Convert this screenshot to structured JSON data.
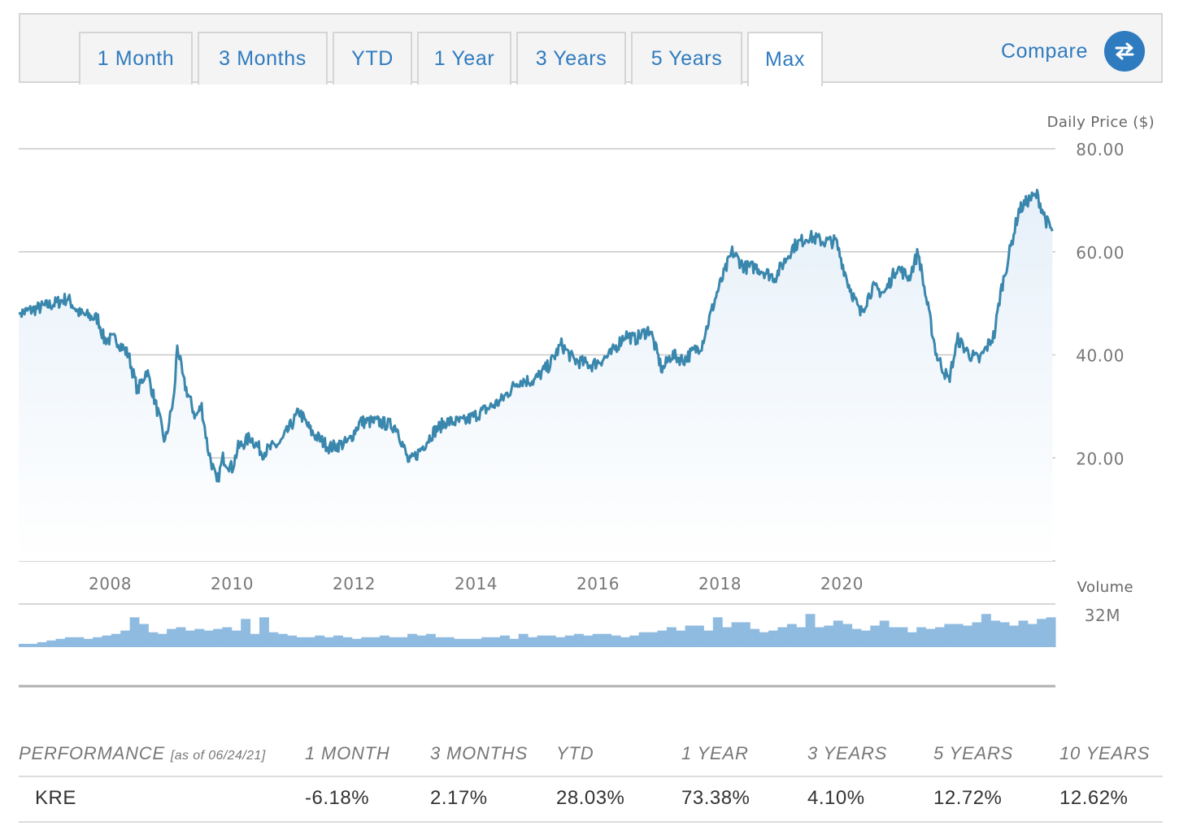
{
  "tabs": [
    {
      "label": "1 Month",
      "active": false
    },
    {
      "label": "3 Months",
      "active": false
    },
    {
      "label": "YTD",
      "active": false
    },
    {
      "label": "1 Year",
      "active": false
    },
    {
      "label": "3 Years",
      "active": false
    },
    {
      "label": "5 Years",
      "active": false
    },
    {
      "label": "Max",
      "active": true
    }
  ],
  "compare": {
    "label": "Compare",
    "icon": "swap-arrows-icon"
  },
  "colors": {
    "accent": "#2f7bbf",
    "line": "#3a87ad",
    "area": "#e6f0f9",
    "volume": "#8fbbe0",
    "grid": "#c8c8c8"
  },
  "chart_data": {
    "type": "line",
    "ylabel": "Daily Price ($)",
    "ylim": [
      0,
      80
    ],
    "y_ticks": [
      "80.00",
      "60.00",
      "40.00",
      "20.00"
    ],
    "x_ticks": [
      "2008",
      "2010",
      "2012",
      "2014",
      "2016",
      "2018",
      "2020"
    ],
    "grid": true,
    "series": [
      {
        "values_xy": [
          [
            2006.5,
            48
          ],
          [
            2006.8,
            49
          ],
          [
            2007.1,
            50
          ],
          [
            2007.3,
            51
          ],
          [
            2007.5,
            48
          ],
          [
            2007.8,
            47
          ],
          [
            2007.9,
            43
          ],
          [
            2008.1,
            43
          ],
          [
            2008.3,
            40
          ],
          [
            2008.45,
            33
          ],
          [
            2008.6,
            37
          ],
          [
            2008.8,
            28
          ],
          [
            2008.9,
            23
          ],
          [
            2009.05,
            32
          ],
          [
            2009.1,
            42
          ],
          [
            2009.2,
            35
          ],
          [
            2009.4,
            28
          ],
          [
            2009.5,
            30
          ],
          [
            2009.6,
            22
          ],
          [
            2009.75,
            15
          ],
          [
            2009.85,
            20
          ],
          [
            2010.0,
            18
          ],
          [
            2010.1,
            22
          ],
          [
            2010.3,
            24
          ],
          [
            2010.5,
            21
          ],
          [
            2010.8,
            23
          ],
          [
            2011.1,
            29
          ],
          [
            2011.3,
            25
          ],
          [
            2011.6,
            22
          ],
          [
            2011.9,
            23
          ],
          [
            2012.1,
            27
          ],
          [
            2012.4,
            27
          ],
          [
            2012.7,
            26
          ],
          [
            2012.9,
            19
          ],
          [
            2013.05,
            21
          ],
          [
            2013.3,
            25
          ],
          [
            2013.5,
            27
          ],
          [
            2013.8,
            27
          ],
          [
            2014.1,
            29
          ],
          [
            2014.4,
            31
          ],
          [
            2014.7,
            35
          ],
          [
            2014.95,
            35
          ],
          [
            2015.2,
            38
          ],
          [
            2015.4,
            42
          ],
          [
            2015.6,
            39
          ],
          [
            2015.9,
            38
          ],
          [
            2016.2,
            40
          ],
          [
            2016.45,
            44
          ],
          [
            2016.6,
            43
          ],
          [
            2016.85,
            45
          ],
          [
            2017.05,
            37
          ],
          [
            2017.2,
            40
          ],
          [
            2017.4,
            39
          ],
          [
            2017.7,
            42
          ],
          [
            2017.95,
            52
          ],
          [
            2018.2,
            60
          ],
          [
            2018.4,
            57
          ],
          [
            2018.6,
            57
          ],
          [
            2018.9,
            55
          ],
          [
            2019.2,
            61
          ],
          [
            2019.45,
            63
          ],
          [
            2019.7,
            62
          ],
          [
            2019.9,
            62
          ],
          [
            2020.1,
            54
          ],
          [
            2020.3,
            48
          ],
          [
            2020.5,
            53
          ],
          [
            2020.7,
            52
          ],
          [
            2020.9,
            57
          ],
          [
            2021.1,
            55
          ],
          [
            2021.25,
            60
          ],
          [
            2021.35,
            53
          ],
          [
            2021.55,
            40
          ],
          [
            2021.75,
            35
          ],
          [
            2021.9,
            43
          ],
          [
            2022.1,
            40
          ],
          [
            2022.25,
            39
          ],
          [
            2022.4,
            42
          ],
          [
            2022.5,
            44
          ],
          [
            2022.6,
            52
          ],
          [
            2022.75,
            60
          ],
          [
            2022.9,
            68
          ],
          [
            2023.05,
            70
          ],
          [
            2023.2,
            71
          ],
          [
            2023.35,
            66
          ],
          [
            2023.45,
            64
          ]
        ]
      }
    ],
    "volume": {
      "label": "Volume",
      "max_label": "32M",
      "values": [
        2,
        2,
        3,
        4,
        5,
        6,
        6,
        5,
        6,
        7,
        8,
        10,
        18,
        14,
        9,
        8,
        11,
        12,
        10,
        11,
        10,
        11,
        12,
        10,
        17,
        8,
        18,
        9,
        8,
        7,
        6,
        6,
        7,
        6,
        7,
        6,
        5,
        6,
        6,
        7,
        6,
        6,
        8,
        7,
        8,
        6,
        6,
        5,
        5,
        5,
        6,
        6,
        7,
        5,
        8,
        6,
        7,
        7,
        6,
        7,
        8,
        7,
        8,
        8,
        7,
        6,
        7,
        9,
        9,
        10,
        12,
        10,
        13,
        13,
        10,
        18,
        12,
        15,
        15,
        11,
        9,
        10,
        12,
        14,
        12,
        20,
        12,
        13,
        16,
        14,
        11,
        10,
        13,
        16,
        12,
        12,
        9,
        12,
        11,
        12,
        14,
        14,
        13,
        15,
        20,
        16,
        15,
        13,
        16,
        14,
        17,
        18
      ]
    }
  },
  "performance": {
    "title": "PERFORMANCE",
    "as_of": "[as of 06/24/21]",
    "headers": [
      "1 MONTH",
      "3 MONTHS",
      "YTD",
      "1 YEAR",
      "3 YEARS",
      "5 YEARS",
      "10 YEARS"
    ],
    "rows": [
      {
        "ticker": "KRE",
        "values": [
          "-6.18%",
          "2.17%",
          "28.03%",
          "73.38%",
          "4.10%",
          "12.72%",
          "12.62%"
        ]
      }
    ]
  }
}
